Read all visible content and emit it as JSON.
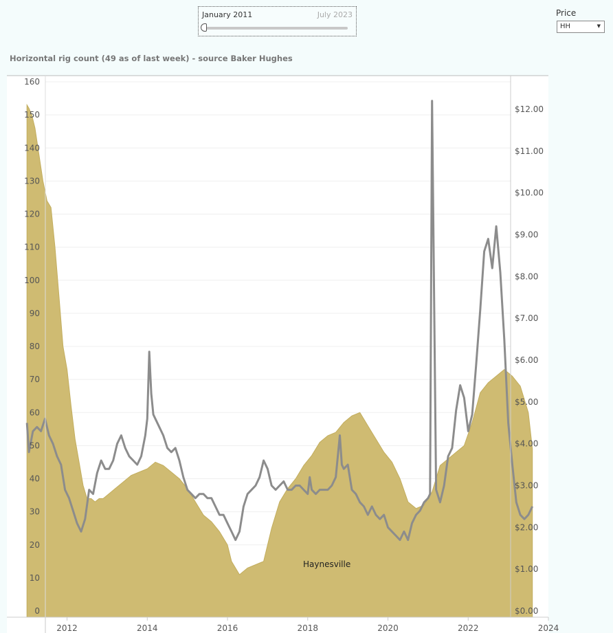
{
  "date_filter": {
    "start_label": "January 2011",
    "end_label": "July 2023"
  },
  "price_filter": {
    "label": "Price",
    "selected": "HH"
  },
  "chart_data": {
    "type": "area",
    "title": "Horizontal rig count (49 as of last week) - source Baker Hughes",
    "annotation": "Haynesville",
    "x_ticks": [
      "2012",
      "2014",
      "2016",
      "2018",
      "2020",
      "2022",
      "2024"
    ],
    "x_range": [
      2010.5,
      2024.0
    ],
    "y_left": {
      "range": [
        0,
        160
      ],
      "ticks": [
        "0",
        "10",
        "20",
        "30",
        "40",
        "50",
        "60",
        "70",
        "80",
        "90",
        "100",
        "110",
        "120",
        "130",
        "140",
        "150",
        "160"
      ]
    },
    "y_right": {
      "range": [
        -0.05,
        12.8
      ],
      "ticks": [
        "$0.00",
        "$1.00",
        "$2.00",
        "$3.00",
        "$4.00",
        "$5.00",
        "$6.00",
        "$7.00",
        "$8.00",
        "$9.00",
        "$10.00",
        "$11.00",
        "$12.00"
      ]
    },
    "area_color": "#cfbb72",
    "line_color": "#8c8c8c",
    "series": [
      {
        "axis": "left",
        "x": [
          2011.0,
          2011.05,
          2011.12,
          2011.2,
          2011.3,
          2011.4,
          2011.5,
          2011.6,
          2011.7,
          2011.8,
          2011.9,
          2012.0,
          2012.1,
          2012.2,
          2012.3,
          2012.4,
          2012.5,
          2012.6,
          2012.7,
          2012.8,
          2012.9,
          2013.0,
          2013.2,
          2013.4,
          2013.6,
          2013.8,
          2014.0,
          2014.2,
          2014.4,
          2014.6,
          2014.8,
          2015.0,
          2015.2,
          2015.4,
          2015.6,
          2015.8,
          2016.0,
          2016.1,
          2016.3,
          2016.5,
          2016.7,
          2016.9,
          2017.1,
          2017.3,
          2017.5,
          2017.7,
          2017.9,
          2018.1,
          2018.3,
          2018.5,
          2018.7,
          2018.9,
          2019.1,
          2019.3,
          2019.5,
          2019.7,
          2019.9,
          2020.1,
          2020.3,
          2020.5,
          2020.7,
          2020.9,
          2021.1,
          2021.3,
          2021.5,
          2021.7,
          2021.9,
          2022.1,
          2022.3,
          2022.5,
          2022.7,
          2022.9,
          2023.1,
          2023.3,
          2023.5,
          2023.6
        ],
        "values": [
          153,
          152,
          150,
          146,
          138,
          130,
          124,
          122,
          110,
          95,
          80,
          73,
          62,
          52,
          45,
          38,
          34,
          34,
          33,
          34,
          34,
          35,
          37,
          39,
          41,
          42,
          43,
          45,
          44,
          42,
          40,
          37,
          33,
          29,
          27,
          24,
          20,
          15,
          11,
          13,
          14,
          15,
          25,
          33,
          37,
          40,
          44,
          47,
          51,
          53,
          54,
          57,
          59,
          60,
          56,
          52,
          48,
          45,
          40,
          33,
          31,
          32,
          36,
          44,
          46,
          48,
          50,
          57,
          66,
          69,
          71,
          73,
          71,
          68,
          60,
          49
        ]
      },
      {
        "axis": "right",
        "x": [
          2011.0,
          2011.05,
          2011.15,
          2011.25,
          2011.35,
          2011.45,
          2011.55,
          2011.65,
          2011.75,
          2011.85,
          2011.95,
          2012.05,
          2012.15,
          2012.25,
          2012.35,
          2012.45,
          2012.55,
          2012.65,
          2012.75,
          2012.85,
          2012.95,
          2013.05,
          2013.15,
          2013.25,
          2013.35,
          2013.45,
          2013.55,
          2013.65,
          2013.75,
          2013.85,
          2013.95,
          2014.0,
          2014.05,
          2014.1,
          2014.15,
          2014.2,
          2014.3,
          2014.4,
          2014.5,
          2014.6,
          2014.7,
          2014.8,
          2014.9,
          2015.0,
          2015.1,
          2015.2,
          2015.3,
          2015.4,
          2015.5,
          2015.6,
          2015.7,
          2015.8,
          2015.9,
          2016.0,
          2016.1,
          2016.2,
          2016.3,
          2016.4,
          2016.5,
          2016.6,
          2016.7,
          2016.8,
          2016.9,
          2017.0,
          2017.1,
          2017.2,
          2017.3,
          2017.4,
          2017.5,
          2017.6,
          2017.7,
          2017.8,
          2017.9,
          2018.0,
          2018.05,
          2018.1,
          2018.2,
          2018.3,
          2018.4,
          2018.5,
          2018.6,
          2018.7,
          2018.8,
          2018.85,
          2018.9,
          2019.0,
          2019.1,
          2019.2,
          2019.3,
          2019.4,
          2019.5,
          2019.6,
          2019.7,
          2019.8,
          2019.9,
          2020.0,
          2020.1,
          2020.2,
          2020.3,
          2020.4,
          2020.5,
          2020.6,
          2020.7,
          2020.8,
          2020.9,
          2021.0,
          2021.05,
          2021.1,
          2021.2,
          2021.3,
          2021.4,
          2021.5,
          2021.6,
          2021.7,
          2021.8,
          2021.9,
          2022.0,
          2022.1,
          2022.2,
          2022.3,
          2022.4,
          2022.5,
          2022.6,
          2022.7,
          2022.8,
          2022.9,
          2023.0,
          2023.1,
          2023.2,
          2023.3,
          2023.4,
          2023.5,
          2023.6
        ],
        "values": [
          4.5,
          3.8,
          4.3,
          4.4,
          4.3,
          4.6,
          4.2,
          4.0,
          3.7,
          3.5,
          2.9,
          2.7,
          2.4,
          2.1,
          1.9,
          2.2,
          2.9,
          2.8,
          3.3,
          3.6,
          3.4,
          3.4,
          3.6,
          4.0,
          4.2,
          3.9,
          3.7,
          3.6,
          3.5,
          3.7,
          4.2,
          4.6,
          6.2,
          5.2,
          4.7,
          4.6,
          4.4,
          4.2,
          3.9,
          3.8,
          3.9,
          3.6,
          3.2,
          2.9,
          2.8,
          2.7,
          2.8,
          2.8,
          2.7,
          2.7,
          2.5,
          2.3,
          2.3,
          2.1,
          1.9,
          1.7,
          1.9,
          2.5,
          2.8,
          2.9,
          3.0,
          3.2,
          3.6,
          3.4,
          3.0,
          2.9,
          3.0,
          3.1,
          2.9,
          2.9,
          3.0,
          3.0,
          2.9,
          2.8,
          3.2,
          2.9,
          2.8,
          2.9,
          2.9,
          2.9,
          3.0,
          3.2,
          4.2,
          3.5,
          3.4,
          3.5,
          2.9,
          2.8,
          2.6,
          2.5,
          2.3,
          2.5,
          2.3,
          2.2,
          2.3,
          2.0,
          1.9,
          1.8,
          1.7,
          1.9,
          1.7,
          2.1,
          2.3,
          2.4,
          2.6,
          2.7,
          2.8,
          12.2,
          2.9,
          2.6,
          3.0,
          3.7,
          3.9,
          4.8,
          5.4,
          5.1,
          4.3,
          4.7,
          5.9,
          7.2,
          8.6,
          8.9,
          8.2,
          9.2,
          8.1,
          6.5,
          4.5,
          3.5,
          2.6,
          2.3,
          2.2,
          2.3,
          2.5
        ]
      }
    ]
  }
}
